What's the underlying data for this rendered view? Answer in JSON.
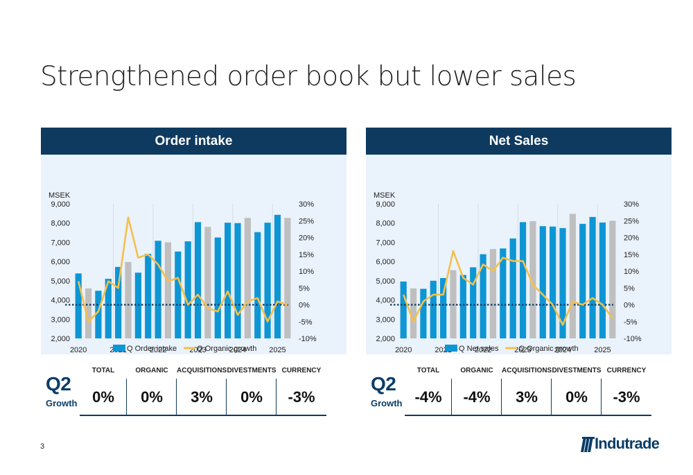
{
  "title": "Strengthened order book but lower sales",
  "page_number": "3",
  "logo": {
    "text": "Indutrade",
    "color": "#0a3d68"
  },
  "colors": {
    "header_bg": "#0f3a5f",
    "panel_bg": "#eaf2fb",
    "bar_primary": "#0e96d4",
    "bar_q2": "#bfbfbf",
    "line": "#f5c04a",
    "zero_line": "#0f3a5f"
  },
  "panels": [
    {
      "header": "Order intake",
      "growth": {
        "quarter": "Q2",
        "label": "Growth",
        "metrics": [
          {
            "name": "TOTAL",
            "value": "0%"
          },
          {
            "name": "ORGANIC",
            "value": "0%"
          },
          {
            "name": "ACQUISITIONS",
            "value": "3%"
          },
          {
            "name": "DIVESTMENTS",
            "value": "0%"
          },
          {
            "name": "CURRENCY",
            "value": "-3%"
          }
        ]
      }
    },
    {
      "header": "Net Sales",
      "growth": {
        "quarter": "Q2",
        "label": "Growth",
        "metrics": [
          {
            "name": "TOTAL",
            "value": "-4%"
          },
          {
            "name": "ORGANIC",
            "value": "-4%"
          },
          {
            "name": "ACQUISITIONS",
            "value": "3%"
          },
          {
            "name": "DIVESTMENTS",
            "value": "0%"
          },
          {
            "name": "CURRENCY",
            "value": "-3%"
          }
        ]
      }
    }
  ],
  "chart_data": [
    {
      "type": "bar",
      "title": "Order intake",
      "ylabel": "MSEK",
      "ylim": [
        2000,
        9000
      ],
      "yticks": [
        "2,000",
        "3,000",
        "4,000",
        "5,000",
        "6,000",
        "7,000",
        "8,000",
        "9,000"
      ],
      "y2lim": [
        -10,
        30
      ],
      "y2ticks": [
        "-10%",
        "-5%",
        "0%",
        "5%",
        "10%",
        "15%",
        "20%",
        "25%",
        "30%"
      ],
      "year_labels": [
        "2020",
        "2021",
        "2022",
        "2023",
        "2024",
        "2025"
      ],
      "grid": "vertical, between years",
      "legend_position": "bottom",
      "quarters": [
        "2020Q1",
        "2020Q2",
        "2020Q3",
        "2020Q4",
        "2021Q1",
        "2021Q2",
        "2021Q3",
        "2021Q4",
        "2022Q1",
        "2022Q2",
        "2022Q3",
        "2022Q4",
        "2023Q1",
        "2023Q2",
        "2023Q3",
        "2023Q4",
        "2024Q1",
        "2024Q2",
        "2024Q3",
        "2024Q4",
        "2025Q1",
        "2025Q2"
      ],
      "highlight": "Q2 bars shown in grey",
      "series": [
        {
          "name": "Q Order intake",
          "kind": "bar",
          "values": [
            5380,
            4600,
            4480,
            5100,
            5720,
            5980,
            5420,
            6400,
            7080,
            7000,
            6520,
            7050,
            8050,
            7800,
            7250,
            8020,
            8000,
            8270,
            7530,
            8020,
            8430,
            8270
          ]
        },
        {
          "name": "Q Organic growth",
          "kind": "line",
          "axis": "secondary",
          "values": [
            7,
            -5,
            -2,
            7,
            5,
            26,
            14,
            15,
            12,
            7,
            8,
            0,
            3,
            -1,
            -2,
            4,
            -3,
            1,
            2,
            -5,
            1,
            0
          ]
        }
      ]
    },
    {
      "type": "bar",
      "title": "Net Sales",
      "ylabel": "MSEK",
      "ylim": [
        2000,
        9000
      ],
      "yticks": [
        "2,000",
        "3,000",
        "4,000",
        "5,000",
        "6,000",
        "7,000",
        "8,000",
        "9,000"
      ],
      "y2lim": [
        -10,
        30
      ],
      "y2ticks": [
        "-10%",
        "-5%",
        "0%",
        "5%",
        "10%",
        "15%",
        "20%",
        "25%",
        "30%"
      ],
      "year_labels": [
        "2020",
        "2021",
        "2022",
        "2023",
        "2024",
        "2025"
      ],
      "grid": "vertical, between years",
      "legend_position": "bottom",
      "quarters": [
        "2020Q1",
        "2020Q2",
        "2020Q3",
        "2020Q4",
        "2021Q1",
        "2021Q2",
        "2021Q3",
        "2021Q4",
        "2022Q1",
        "2022Q2",
        "2022Q3",
        "2022Q4",
        "2023Q1",
        "2023Q2",
        "2023Q3",
        "2023Q4",
        "2024Q1",
        "2024Q2",
        "2024Q3",
        "2024Q4",
        "2025Q1",
        "2025Q2"
      ],
      "highlight": "Q2 bars shown in grey",
      "series": [
        {
          "name": "Q Net sales",
          "kind": "bar",
          "values": [
            4960,
            4600,
            4580,
            5000,
            5140,
            5550,
            5300,
            5700,
            6380,
            6650,
            6680,
            7200,
            8050,
            8100,
            7840,
            7820,
            7740,
            8480,
            7960,
            8320,
            8030,
            8120
          ]
        },
        {
          "name": "Q Organic growth",
          "kind": "line",
          "axis": "secondary",
          "values": [
            3,
            -5,
            1,
            3,
            3,
            16,
            8,
            6,
            12,
            10,
            14,
            13,
            13,
            6,
            3,
            0,
            -6,
            1,
            0,
            2,
            0,
            -4
          ]
        }
      ]
    }
  ]
}
